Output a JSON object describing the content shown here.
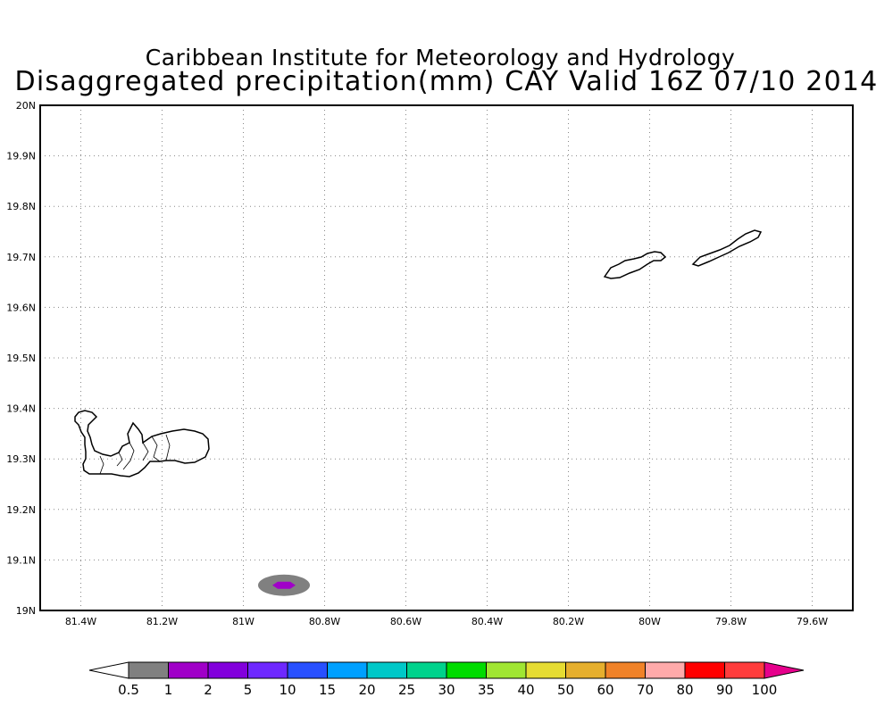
{
  "title": {
    "line1": "Caribbean Institute for Meteorology and Hydrology",
    "line2": "Disaggregated precipitation(mm) CAY Valid 16Z 07/10 2014"
  },
  "map": {
    "x_ticks": [
      "81.4W",
      "81.2W",
      "81W",
      "80.8W",
      "80.6W",
      "80.4W",
      "80.2W",
      "80W",
      "79.8W",
      "79.6W"
    ],
    "y_ticks": [
      "19N",
      "19.1N",
      "19.2N",
      "19.3N",
      "19.4N",
      "19.5N",
      "19.6N",
      "19.7N",
      "19.8N",
      "19.9N",
      "20N"
    ],
    "lon_range": [
      -81.5,
      -79.5
    ],
    "lat_range": [
      19.0,
      20.0
    ],
    "grid": true,
    "precip_cell": {
      "lon": -80.9,
      "lat": 19.05,
      "outer_color": "#808080",
      "inner_color": "#a000c8"
    }
  },
  "colorbar": {
    "labels": [
      "0.5",
      "1",
      "2",
      "5",
      "10",
      "15",
      "20",
      "25",
      "30",
      "35",
      "40",
      "50",
      "60",
      "70",
      "80",
      "90",
      "100"
    ],
    "colors": [
      "#808080",
      "#a000c8",
      "#8200dc",
      "#6e28ff",
      "#2850ff",
      "#00a0ff",
      "#00c8c8",
      "#00d28c",
      "#00dc00",
      "#a0e632",
      "#e6dc32",
      "#e6af2d",
      "#f08228",
      "#ffaaaa",
      "#ff0000",
      "#ff3c3c"
    ],
    "low_color": "#ffffff",
    "high_color": "#e6008c"
  }
}
